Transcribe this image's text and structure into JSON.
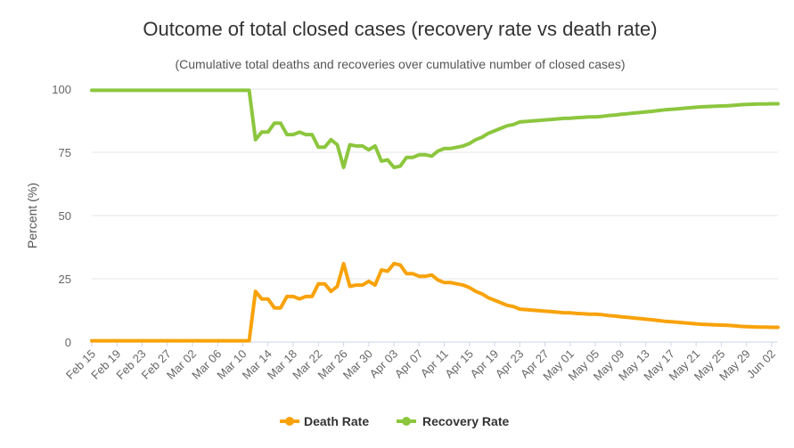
{
  "chart_data": {
    "type": "line",
    "title": "Outcome of total closed cases (recovery rate vs death rate)",
    "subtitle": "(Cumulative total deaths and recoveries over cumulative number of closed cases)",
    "xlabel": "",
    "ylabel": "Percent (%)",
    "ylim": [
      0,
      100
    ],
    "yticks": [
      0,
      25,
      50,
      75,
      100
    ],
    "grid": true,
    "legend_position": "bottom-center",
    "x_start": "Feb 15",
    "x_tick_step": 4,
    "x_tick_labels": [
      "Feb 15",
      "Feb 19",
      "Feb 23",
      "Feb 27",
      "Mar 02",
      "Mar 06",
      "Mar 10",
      "Mar 14",
      "Mar 18",
      "Mar 22",
      "Mar 26",
      "Mar 30",
      "Apr 03",
      "Apr 07",
      "Apr 11",
      "Apr 15",
      "Apr 19",
      "Apr 23",
      "Apr 27",
      "May 01",
      "May 05",
      "May 09",
      "May 13",
      "May 17",
      "May 21",
      "May 25",
      "May 29",
      "Jun 02"
    ],
    "series": [
      {
        "name": "Death Rate",
        "color": "#F8A20A",
        "values": [
          0.5,
          0.5,
          0.5,
          0.5,
          0.5,
          0.5,
          0.5,
          0.5,
          0.5,
          0.5,
          0.5,
          0.5,
          0.5,
          0.5,
          0.5,
          0.5,
          0.5,
          0.5,
          0.5,
          0.5,
          0.5,
          0.5,
          0.5,
          0.5,
          0.5,
          0.5,
          20,
          17,
          17,
          13.5,
          13.5,
          18,
          18,
          17,
          18,
          18,
          23,
          23,
          20,
          22,
          31,
          22,
          22.5,
          22.5,
          24,
          22.5,
          28.5,
          28,
          31,
          30.5,
          27,
          27,
          26,
          26,
          26.5,
          24.5,
          23.5,
          23.5,
          23,
          22.5,
          21.5,
          20,
          19,
          17.5,
          16.5,
          15.5,
          14.5,
          14,
          13,
          12.8,
          12.6,
          12.4,
          12.2,
          12,
          11.8,
          11.6,
          11.5,
          11.3,
          11.2,
          11,
          11,
          10.8,
          10.5,
          10.3,
          10,
          9.8,
          9.5,
          9.3,
          9,
          8.8,
          8.5,
          8.2,
          8,
          7.8,
          7.6,
          7.4,
          7.2,
          7,
          6.9,
          6.8,
          6.7,
          6.6,
          6.4,
          6.2,
          6.1,
          6,
          5.9,
          5.9,
          5.8,
          5.8
        ]
      },
      {
        "name": "Recovery Rate",
        "color": "#8CC63E",
        "values": [
          99.5,
          99.5,
          99.5,
          99.5,
          99.5,
          99.5,
          99.5,
          99.5,
          99.5,
          99.5,
          99.5,
          99.5,
          99.5,
          99.5,
          99.5,
          99.5,
          99.5,
          99.5,
          99.5,
          99.5,
          99.5,
          99.5,
          99.5,
          99.5,
          99.5,
          99.5,
          80,
          83,
          83,
          86.5,
          86.5,
          82,
          82,
          83,
          82,
          82,
          77,
          77,
          80,
          78,
          69,
          78,
          77.5,
          77.5,
          76,
          77.5,
          71.5,
          72,
          69,
          69.5,
          73,
          73,
          74,
          74,
          73.5,
          75.5,
          76.5,
          76.5,
          77,
          77.5,
          78.5,
          80,
          81,
          82.5,
          83.5,
          84.5,
          85.5,
          86,
          87,
          87.2,
          87.4,
          87.6,
          87.8,
          88,
          88.2,
          88.4,
          88.5,
          88.7,
          88.8,
          89,
          89,
          89.2,
          89.5,
          89.7,
          90,
          90.2,
          90.5,
          90.7,
          91,
          91.2,
          91.5,
          91.8,
          92,
          92.2,
          92.4,
          92.6,
          92.8,
          93,
          93.1,
          93.2,
          93.3,
          93.4,
          93.6,
          93.8,
          93.9,
          94,
          94.1,
          94.1,
          94.2,
          94.2
        ]
      }
    ]
  }
}
